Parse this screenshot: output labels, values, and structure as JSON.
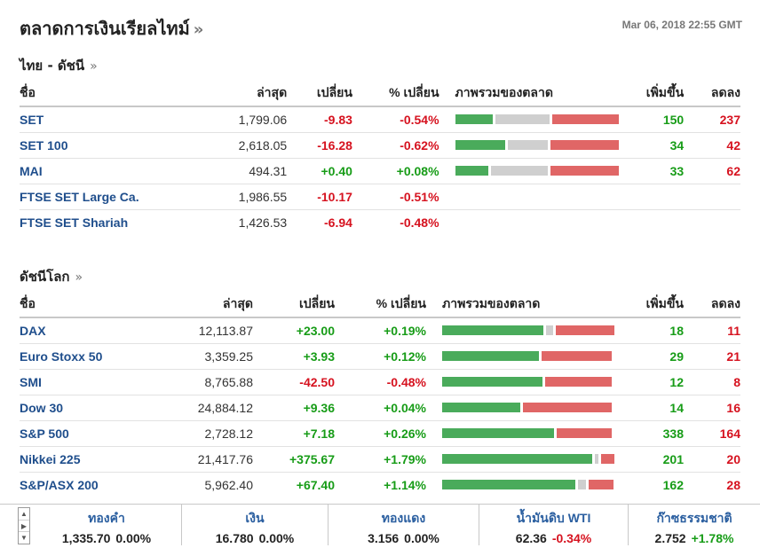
{
  "header": {
    "title": "ตลาดการเงินเรียลไทม์",
    "title_raquo": "»",
    "timestamp": "Mar 06, 2018 22:55 GMT"
  },
  "colors": {
    "up": "#179c17",
    "down": "#d6121f",
    "link": "#1f4e8c",
    "bar_up": "#4aab5b",
    "bar_unchanged": "#cfcfcf",
    "bar_down": "#e06666"
  },
  "thai": {
    "title": "ไทย - ดัชนี",
    "raquo": "»",
    "headers": {
      "name": "ชื่อ",
      "last": "ล่าสุด",
      "change": "เปลี่ยน",
      "pct": "% เปลี่ยน",
      "overview": "ภาพรวมของตลาด",
      "up": "เพิ่มขึ้น",
      "down": "ลดลง"
    },
    "rows": [
      {
        "name": "SET",
        "last": "1,799.06",
        "change": "-9.83",
        "pct": "-0.54%",
        "dir": "neg",
        "up": "150",
        "down": "237",
        "breadth": [
          0.24,
          0.34,
          0.42
        ]
      },
      {
        "name": "SET 100",
        "last": "2,618.05",
        "change": "-16.28",
        "pct": "-0.62%",
        "dir": "neg",
        "up": "34",
        "down": "42",
        "breadth": [
          0.32,
          0.25,
          0.43
        ]
      },
      {
        "name": "MAI",
        "last": "494.31",
        "change": "+0.40",
        "pct": "+0.08%",
        "dir": "pos",
        "up": "33",
        "down": "62",
        "breadth": [
          0.21,
          0.36,
          0.43
        ]
      },
      {
        "name": "FTSE SET Large Ca.",
        "last": "1,986.55",
        "change": "-10.17",
        "pct": "-0.51%",
        "dir": "neg",
        "up": "",
        "down": "",
        "breadth": null
      },
      {
        "name": "FTSE SET Shariah",
        "last": "1,426.53",
        "change": "-6.94",
        "pct": "-0.48%",
        "dir": "neg",
        "up": "",
        "down": "",
        "breadth": null
      }
    ]
  },
  "world": {
    "title": "ดัชนีโลก",
    "raquo": "»",
    "headers": {
      "name": "ชื่อ",
      "last": "ล่าสุด",
      "change": "เปลี่ยน",
      "pct": "% เปลี่ยน",
      "overview": "ภาพรวมของตลาด",
      "up": "เพิ่มขึ้น",
      "down": "ลดลง"
    },
    "rows": [
      {
        "name": "DAX",
        "last": "12,113.87",
        "change": "+23.00",
        "pct": "+0.19%",
        "dir": "pos",
        "up": "18",
        "down": "11",
        "breadth": [
          0.61,
          0.04,
          0.35
        ]
      },
      {
        "name": "Euro Stoxx 50",
        "last": "3,359.25",
        "change": "+3.93",
        "pct": "+0.12%",
        "dir": "pos",
        "up": "29",
        "down": "21",
        "breadth": [
          0.58,
          0.0,
          0.42
        ]
      },
      {
        "name": "SMI",
        "last": "8,765.88",
        "change": "-42.50",
        "pct": "-0.48%",
        "dir": "neg",
        "up": "12",
        "down": "8",
        "breadth": [
          0.6,
          0.0,
          0.4
        ]
      },
      {
        "name": "Dow 30",
        "last": "24,884.12",
        "change": "+9.36",
        "pct": "+0.04%",
        "dir": "pos",
        "up": "14",
        "down": "16",
        "breadth": [
          0.47,
          0.0,
          0.53
        ]
      },
      {
        "name": "S&P 500",
        "last": "2,728.12",
        "change": "+7.18",
        "pct": "+0.26%",
        "dir": "pos",
        "up": "338",
        "down": "164",
        "breadth": [
          0.67,
          0.0,
          0.33
        ]
      },
      {
        "name": "Nikkei 225",
        "last": "21,417.76",
        "change": "+375.67",
        "pct": "+1.79%",
        "dir": "pos",
        "up": "201",
        "down": "20",
        "breadth": [
          0.9,
          0.02,
          0.08
        ]
      },
      {
        "name": "S&P/ASX 200",
        "last": "5,962.40",
        "change": "+67.40",
        "pct": "+1.14%",
        "dir": "pos",
        "up": "162",
        "down": "28",
        "breadth": [
          0.8,
          0.05,
          0.15
        ]
      }
    ]
  },
  "ticker": {
    "nav_up": "▲",
    "nav_mid": "▶",
    "nav_down": "▼",
    "items": [
      {
        "name": "ทองคำ",
        "value": "1,335.70",
        "change": "0.00%",
        "dir": "flat"
      },
      {
        "name": "เงิน",
        "value": "16.780",
        "change": "0.00%",
        "dir": "flat"
      },
      {
        "name": "ทองแดง",
        "value": "3.156",
        "change": "0.00%",
        "dir": "flat"
      },
      {
        "name": "น้ำมันดิบ WTI",
        "value": "62.36",
        "change": "-0.34%",
        "dir": "neg"
      },
      {
        "name": "ก๊าซธรรมชาติ",
        "value": "2.752",
        "change": "+1.78%",
        "dir": "pos"
      }
    ]
  }
}
